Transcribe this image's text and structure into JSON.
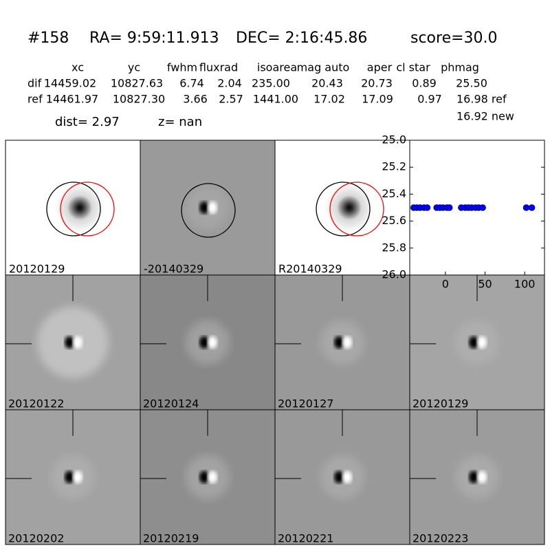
{
  "header": {
    "id": "#158",
    "ra": "RA= 9:59:11.913",
    "dec": "DEC= 2:16:45.86",
    "score": "score=30.0"
  },
  "table": {
    "columns": [
      "xc",
      "yc",
      "fwhm",
      "fluxrad",
      "isoarea",
      "mag auto",
      "aper",
      "cl star",
      "phmag"
    ],
    "rows": [
      [
        "dif",
        "14459.02",
        "10827.63",
        "6.74",
        "2.04",
        "235.00",
        "20.43",
        "20.73",
        "0.89",
        "25.50"
      ],
      [
        "ref",
        "14461.97",
        "10827.30",
        "3.66",
        "2.57",
        "1441.00",
        "17.02",
        "17.09",
        "0.97",
        "16.98 ref"
      ]
    ],
    "extra": "16.92 new"
  },
  "dist": "dist=  2.97",
  "z": "z=   nan",
  "top_panels": [
    "20120129",
    "-20140329",
    "R20140329"
  ],
  "stamps": [
    {
      "label": "20120122",
      "label_color": "#000000"
    },
    {
      "label": "20120124",
      "label_color": "#000000"
    },
    {
      "label": "20120127",
      "label_color": "#000000"
    },
    {
      "label": "20120129",
      "label_color": "#ff0000"
    },
    {
      "label": "20120202",
      "label_color": "#000000"
    },
    {
      "label": "20120219",
      "label_color": "#000000"
    },
    {
      "label": "20120221",
      "label_color": "#000000"
    },
    {
      "label": "20120223",
      "label_color": "#000000"
    }
  ],
  "chart_data": {
    "type": "scatter",
    "color": "#0000ff",
    "x": [
      -40,
      -36,
      -32,
      -27,
      -23,
      -11,
      -7,
      -3,
      2,
      5,
      20,
      25,
      29,
      33,
      38,
      42,
      47,
      102,
      109
    ],
    "values": [
      25.5,
      25.5,
      25.5,
      25.5,
      25.5,
      25.5,
      25.5,
      25.5,
      25.5,
      25.5,
      25.5,
      25.5,
      25.5,
      25.5,
      25.5,
      25.5,
      25.5,
      25.5,
      25.5
    ],
    "xlim": [
      -45,
      125
    ],
    "ylim": [
      26.0,
      25.0
    ],
    "inverted_y": true,
    "xticks": [
      0,
      50,
      100
    ],
    "yticks": [
      {
        "value": 25.0,
        "label": "25.0"
      },
      {
        "value": 25.2,
        "label": "25.2"
      },
      {
        "value": 25.4,
        "label": "25.4"
      },
      {
        "value": 25.6,
        "label": "25.6"
      },
      {
        "value": 25.8,
        "label": "25.8"
      },
      {
        "value": 26.0,
        "label": "26.0"
      }
    ]
  }
}
